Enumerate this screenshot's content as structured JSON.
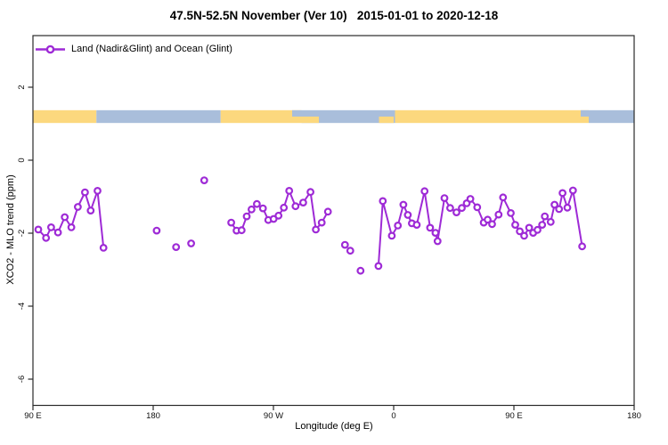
{
  "title": "47.5N-52.5N November (Ver 10)   2015-01-01 to 2020-12-18",
  "legend": {
    "label": "Land (Nadir&Glint) and Ocean (Glint)",
    "position": "top-left"
  },
  "axes": {
    "x_label": "Longitude (deg E)",
    "y_label": "XCO2 - MLO trend (ppm)"
  },
  "colors": {
    "series": "#9E2AD6",
    "land": "#FCD87E",
    "ocean": "#A9BEDB",
    "axis": "#2a2a2a"
  },
  "chart_data": {
    "type": "line",
    "title": "47.5N-52.5N November (Ver 10)   2015-01-01 to 2020-12-18",
    "xlabel": "Longitude (deg E)",
    "ylabel": "XCO2 - MLO trend (ppm)",
    "xlim": [
      90,
      540
    ],
    "ylim": [
      -6.7,
      3.4
    ],
    "grid": false,
    "legend_position": "top-left",
    "x_ticks": [
      {
        "value": 90,
        "label": "90 E"
      },
      {
        "value": 180,
        "label": "180"
      },
      {
        "value": 270,
        "label": "90 W"
      },
      {
        "value": 360,
        "label": "0"
      },
      {
        "value": 450,
        "label": "90 E"
      },
      {
        "value": 540,
        "label": "180"
      }
    ],
    "y_ticks": [
      {
        "value": 2,
        "label": "2"
      },
      {
        "value": 0,
        "label": "0"
      },
      {
        "value": -2,
        "label": "-2"
      },
      {
        "value": -4,
        "label": "-4"
      },
      {
        "value": -6,
        "label": "-6"
      }
    ],
    "series": [
      {
        "name": "Land (Nadir&Glint) and Ocean (Glint)",
        "marker": "open-circle",
        "connected_runs": [
          [
            [
              94.0,
              -1.9
            ],
            [
              99.8,
              -2.13
            ],
            [
              103.6,
              -1.84
            ],
            [
              108.7,
              -1.98
            ],
            [
              113.8,
              -1.56
            ],
            [
              118.7,
              -1.84
            ],
            [
              123.6,
              -1.28
            ],
            [
              128.9,
              -0.88
            ],
            [
              133.2,
              -1.38
            ],
            [
              138.3,
              -0.84
            ],
            [
              142.8,
              -2.4
            ]
          ],
          [
            [
              238.4,
              -1.71
            ],
            [
              242.4,
              -1.93
            ],
            [
              246.2,
              -1.92
            ],
            [
              250.0,
              -1.54
            ],
            [
              253.6,
              -1.35
            ],
            [
              257.6,
              -1.2
            ],
            [
              262.1,
              -1.32
            ],
            [
              266.1,
              -1.64
            ],
            [
              270.1,
              -1.61
            ],
            [
              273.8,
              -1.52
            ],
            [
              277.8,
              -1.3
            ],
            [
              281.8,
              -0.84
            ],
            [
              286.5,
              -1.26
            ],
            [
              292.3,
              -1.16
            ],
            [
              297.7,
              -0.87
            ],
            [
              301.7,
              -1.9
            ],
            [
              306.1,
              -1.71
            ],
            [
              310.8,
              -1.41
            ]
          ],
          [
            [
              348.6,
              -2.9
            ],
            [
              351.9,
              -1.12
            ],
            [
              358.6,
              -2.07
            ],
            [
              363.1,
              -1.79
            ],
            [
              367.3,
              -1.22
            ],
            [
              370.6,
              -1.5
            ],
            [
              373.6,
              -1.73
            ],
            [
              377.3,
              -1.77
            ],
            [
              383.1,
              -0.85
            ],
            [
              387.3,
              -1.85
            ],
            [
              391.3,
              -1.99
            ],
            [
              392.9,
              -2.22
            ],
            [
              398.0,
              -1.04
            ],
            [
              402.3,
              -1.31
            ],
            [
              407.0,
              -1.43
            ],
            [
              411.0,
              -1.31
            ],
            [
              414.7,
              -1.18
            ],
            [
              417.4,
              -1.06
            ],
            [
              422.5,
              -1.29
            ],
            [
              427.4,
              -1.71
            ],
            [
              430.3,
              -1.63
            ],
            [
              433.7,
              -1.75
            ],
            [
              438.5,
              -1.49
            ],
            [
              441.9,
              -1.02
            ],
            [
              447.7,
              -1.45
            ],
            [
              451.0,
              -1.77
            ],
            [
              454.4,
              -1.95
            ],
            [
              457.7,
              -2.07
            ],
            [
              461.4,
              -1.85
            ],
            [
              464.4,
              -1.99
            ],
            [
              467.7,
              -1.91
            ],
            [
              471.1,
              -1.77
            ],
            [
              473.1,
              -1.54
            ],
            [
              477.5,
              -1.69
            ],
            [
              480.4,
              -1.22
            ],
            [
              483.8,
              -1.34
            ],
            [
              486.4,
              -0.9
            ],
            [
              490.0,
              -1.3
            ],
            [
              494.2,
              -0.83
            ],
            [
              501.1,
              -2.36
            ]
          ]
        ],
        "isolated_points": [
          [
            182.6,
            -1.93
          ],
          [
            197.1,
            -2.38
          ],
          [
            208.4,
            -2.28
          ],
          [
            218.2,
            -0.55
          ],
          [
            323.5,
            -2.32
          ],
          [
            327.5,
            -2.48
          ],
          [
            335.2,
            -3.03
          ]
        ]
      }
    ],
    "land_ocean_band": {
      "y_range": [
        1.02,
        1.37
      ],
      "segments": [
        {
          "from": 90,
          "to": 137.5,
          "type": "land"
        },
        {
          "from": 137.5,
          "to": 230.5,
          "type": "ocean"
        },
        {
          "from": 230.5,
          "to": 291,
          "type": "land"
        },
        {
          "from": 291,
          "to": 361,
          "type": "ocean"
        },
        {
          "from": 361,
          "to": 506,
          "type": "land"
        },
        {
          "from": 506,
          "to": 540,
          "type": "ocean"
        }
      ],
      "patches": [
        {
          "from": 284,
          "to": 291,
          "half": "top",
          "type": "ocean"
        },
        {
          "from": 291,
          "to": 304,
          "half": "bottom",
          "type": "land"
        },
        {
          "from": 349,
          "to": 360,
          "half": "bottom",
          "type": "land"
        },
        {
          "from": 500,
          "to": 506,
          "half": "top",
          "type": "ocean"
        }
      ]
    }
  }
}
